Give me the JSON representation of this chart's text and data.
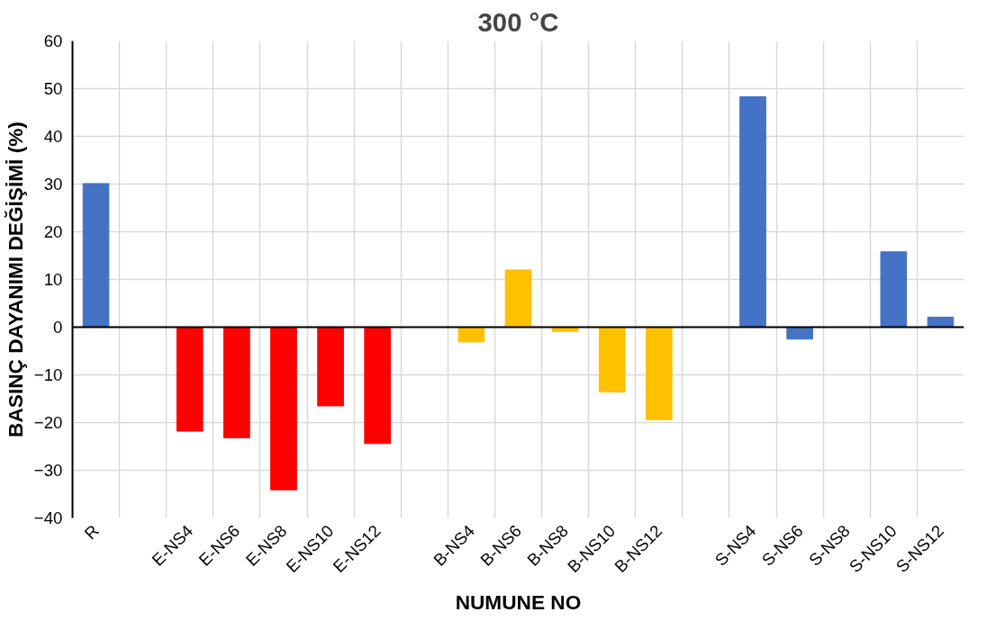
{
  "chart_data": {
    "type": "bar",
    "title": "300 °C",
    "xlabel": "NUMUNE NO",
    "ylabel": "BASINÇ DAYANIMI DEĞİŞİMİ (%)",
    "categories": [
      "R",
      null,
      "E-NS4",
      "E-NS6",
      "E-NS8",
      "E-NS10",
      "E-NS12",
      null,
      "B-NS4",
      "B-NS6",
      "B-NS8",
      "B-NS10",
      "B-NS12",
      null,
      "S-NS4",
      "S-NS6",
      "S-NS8",
      "S-NS10",
      "S-NS12"
    ],
    "values": [
      30.1,
      null,
      -21.8,
      -23.2,
      -34.1,
      -16.5,
      -24.4,
      null,
      -3.1,
      12.0,
      -0.9,
      -13.6,
      -19.4,
      null,
      48.3,
      -2.5,
      0,
      15.8,
      2.1
    ],
    "colors": [
      "#4472c4",
      null,
      "#ff0000",
      "#ff0000",
      "#ff0000",
      "#ff0000",
      "#ff0000",
      null,
      "#ffc000",
      "#ffc000",
      "#ffc000",
      "#ffc000",
      "#ffc000",
      null,
      "#4472c4",
      "#4472c4",
      "#4472c4",
      "#4472c4",
      "#4472c4"
    ],
    "ylim": [
      -40,
      60
    ],
    "yticks": [
      -40,
      -30,
      -20,
      -10,
      0,
      10,
      20,
      30,
      40,
      50,
      60
    ],
    "grid": true
  }
}
